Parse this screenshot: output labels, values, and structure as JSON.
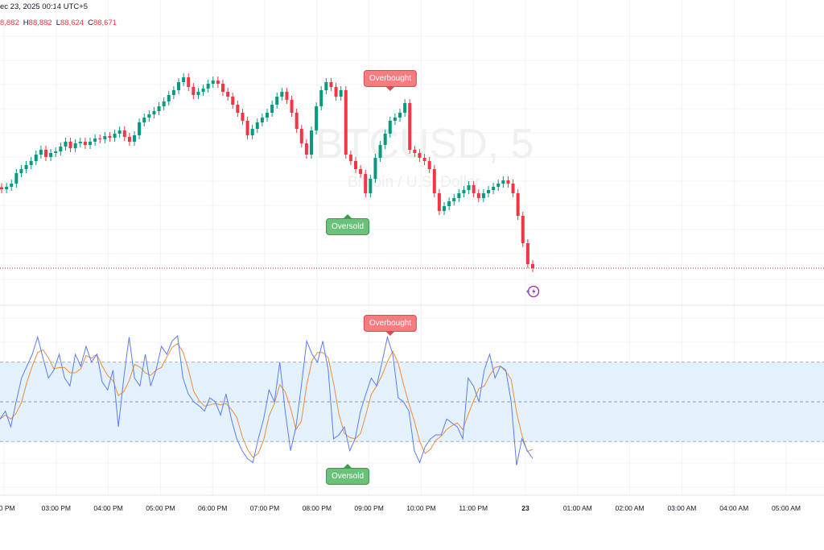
{
  "header": {
    "datetime": "ec 23, 2025 00:14 UTC+5",
    "ohlc": {
      "o_value": "8,882",
      "h_key": "H",
      "h_value": "88,882",
      "l_key": "L",
      "l_value": "88,624",
      "c_key": "C",
      "c_value": "88,671"
    }
  },
  "watermark": {
    "symbol": "BTCUSD, 5",
    "description": "Bitcoin / U.S. Dollar"
  },
  "colors": {
    "up": "#089981",
    "down": "#f23645",
    "k_line": "#5b7cf5",
    "d_line": "#f08a3c",
    "band_fill": "#e3f2fd",
    "last_price_line": "#b22833"
  },
  "signals": {
    "price_overbought": "Overbought",
    "price_oversold": "Oversold",
    "osc_overbought": "Overbought",
    "osc_oversold": "Oversold"
  },
  "icons": {
    "alert": "lightning-icon"
  },
  "chart_data": [
    {
      "type": "candlestick",
      "symbol": "BTCUSD",
      "interval": "5",
      "last_close": 88671,
      "closes": [
        89455,
        89479,
        89511,
        89615,
        89655,
        89695,
        89735,
        89799,
        89847,
        89775,
        89815,
        89831,
        89879,
        89927,
        89863,
        89911,
        89927,
        89895,
        89927,
        89959,
        89951,
        89983,
        89967,
        90007,
        90039,
        89975,
        89927,
        89991,
        90119,
        90167,
        90199,
        90231,
        90279,
        90327,
        90391,
        90439,
        90519,
        90567,
        90471,
        90391,
        90423,
        90455,
        90503,
        90535,
        90503,
        90423,
        90375,
        90295,
        90215,
        90135,
        89991,
        90055,
        90119,
        90167,
        90215,
        90295,
        90375,
        90423,
        90343,
        90215,
        90055,
        89911,
        89799,
        90039,
        90279,
        90439,
        90519,
        90471,
        90375,
        90439,
        89799,
        89735,
        89655,
        89607,
        89415,
        89559,
        89767,
        89895,
        90007,
        90135,
        90167,
        90215,
        90311,
        89847,
        89815,
        89767,
        89735,
        89655,
        89415,
        89239,
        89287,
        89335,
        89367,
        89415,
        89447,
        89495,
        89415,
        89367,
        89415,
        89447,
        89479,
        89511,
        89543,
        89511,
        89415,
        89191,
        88919,
        88711,
        88671
      ],
      "x_tick_labels": [
        "00 PM",
        "03:00 PM",
        "04:00 PM",
        "05:00 PM",
        "06:00 PM",
        "07:00 PM",
        "08:00 PM",
        "09:00 PM",
        "10:00 PM",
        "11:00 PM",
        "23",
        "01:00 AM",
        "02:00 AM",
        "03:00 AM",
        "04:00 AM",
        "05:00 AM"
      ]
    },
    {
      "type": "line",
      "indicator": "stochastic",
      "ylim": [
        0,
        100
      ],
      "bands": [
        20,
        50,
        80
      ],
      "k": [
        37,
        43,
        31,
        50,
        68,
        77,
        86,
        99,
        83,
        68,
        74,
        86,
        68,
        62,
        86,
        77,
        92,
        80,
        86,
        65,
        59,
        74,
        31,
        68,
        99,
        68,
        62,
        86,
        62,
        74,
        92,
        86,
        96,
        100,
        68,
        56,
        50,
        47,
        43,
        53,
        50,
        40,
        56,
        37,
        22,
        13,
        7,
        4,
        22,
        37,
        59,
        50,
        80,
        43,
        13,
        31,
        62,
        96,
        86,
        80,
        96,
        74,
        22,
        25,
        31,
        13,
        22,
        43,
        56,
        68,
        62,
        80,
        99,
        86,
        53,
        50,
        43,
        13,
        4,
        16,
        22,
        25,
        25,
        37,
        34,
        31,
        22,
        68,
        62,
        50,
        74,
        86,
        68,
        77,
        74,
        50,
        2,
        22,
        13,
        7
      ]
    }
  ]
}
